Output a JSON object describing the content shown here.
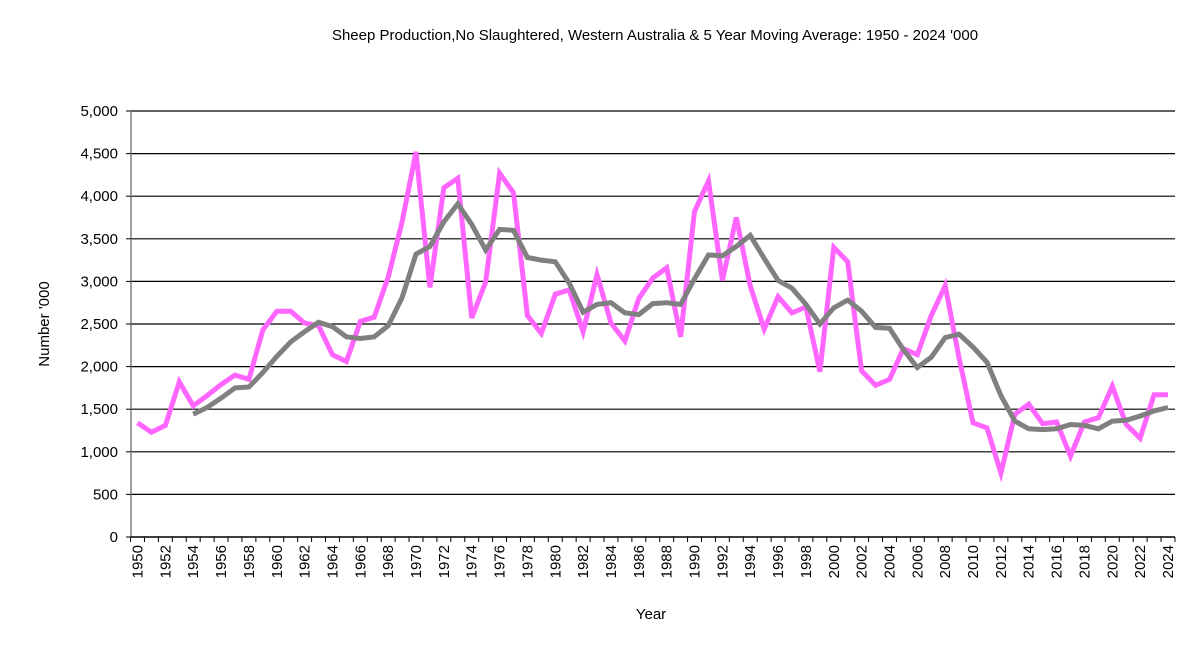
{
  "chart_data": {
    "type": "line",
    "title": "Sheep Production,No Slaughtered, Western Australia & 5 Year Moving Average: 1950 - 2024 '000",
    "xlabel": "Year",
    "ylabel": "Number '000",
    "ylim": [
      0,
      5000
    ],
    "yticks": [
      0,
      500,
      1000,
      1500,
      2000,
      2500,
      3000,
      3500,
      4000,
      4500,
      5000
    ],
    "ytick_labels": [
      "0",
      "500",
      "1,000",
      "1,500",
      "2,000",
      "2,500",
      "3,000",
      "3,500",
      "4,000",
      "4,500",
      "5,000"
    ],
    "xlim": [
      1950,
      2024
    ],
    "xtick_labels": [
      "1950",
      "1952",
      "1954",
      "1956",
      "1958",
      "1960",
      "1962",
      "1964",
      "1966",
      "1968",
      "1970",
      "1972",
      "1974",
      "1976",
      "1978",
      "1980",
      "1982",
      "1984",
      "1986",
      "1988",
      "1990",
      "1992",
      "1994",
      "1996",
      "1998",
      "2000",
      "2002",
      "2004",
      "2006",
      "2008",
      "2010",
      "2012",
      "2014",
      "2016",
      "2018",
      "2020",
      "2022",
      "2024"
    ],
    "grid": "horizontal",
    "legend": "none",
    "x": [
      1950,
      1951,
      1952,
      1953,
      1954,
      1955,
      1956,
      1957,
      1958,
      1959,
      1960,
      1961,
      1962,
      1963,
      1964,
      1965,
      1966,
      1967,
      1968,
      1969,
      1970,
      1971,
      1972,
      1973,
      1974,
      1975,
      1976,
      1977,
      1978,
      1979,
      1980,
      1981,
      1982,
      1983,
      1984,
      1985,
      1986,
      1987,
      1988,
      1989,
      1990,
      1991,
      1992,
      1993,
      1994,
      1995,
      1996,
      1997,
      1998,
      1999,
      2000,
      2001,
      2002,
      2003,
      2004,
      2005,
      2006,
      2007,
      2008,
      2009,
      2010,
      2011,
      2012,
      2013,
      2014,
      2015,
      2016,
      2017,
      2018,
      2019,
      2020,
      2021,
      2022,
      2023,
      2024
    ],
    "series": [
      {
        "name": "Sheep Slaughtered",
        "color": "#ff66ff",
        "values": [
          1340,
          1230,
          1310,
          1820,
          1540,
          1660,
          1790,
          1900,
          1850,
          2430,
          2650,
          2650,
          2510,
          2480,
          2140,
          2060,
          2530,
          2580,
          3050,
          3700,
          4520,
          2930,
          4100,
          4210,
          2570,
          2990,
          4270,
          4040,
          2600,
          2390,
          2850,
          2900,
          2410,
          3080,
          2510,
          2300,
          2800,
          3040,
          3160,
          2350,
          3820,
          4180,
          3010,
          3750,
          2950,
          2440,
          2820,
          2630,
          2700,
          1940,
          3400,
          3230,
          1950,
          1780,
          1850,
          2210,
          2140,
          2600,
          2950,
          2100,
          1340,
          1280,
          750,
          1440,
          1560,
          1330,
          1350,
          950,
          1350,
          1400,
          1770,
          1320,
          1160,
          1670,
          1670
        ]
      },
      {
        "name": "5 Year Moving Average",
        "color": "#808080",
        "values": [
          null,
          null,
          null,
          null,
          1440,
          1520,
          1630,
          1750,
          1760,
          1930,
          2120,
          2290,
          2410,
          2520,
          2470,
          2350,
          2330,
          2350,
          2480,
          2810,
          3320,
          3410,
          3700,
          3910,
          3670,
          3370,
          3610,
          3600,
          3280,
          3250,
          3230,
          2980,
          2640,
          2730,
          2750,
          2630,
          2610,
          2740,
          2750,
          2730,
          3030,
          3310,
          3300,
          3410,
          3540,
          3270,
          3010,
          2920,
          2730,
          2500,
          2690,
          2780,
          2650,
          2460,
          2450,
          2200,
          1990,
          2110,
          2340,
          2380,
          2230,
          2050,
          1660,
          1360,
          1270,
          1260,
          1270,
          1320,
          1310,
          1270,
          1360,
          1370,
          1420,
          1480,
          1520
        ]
      }
    ]
  }
}
